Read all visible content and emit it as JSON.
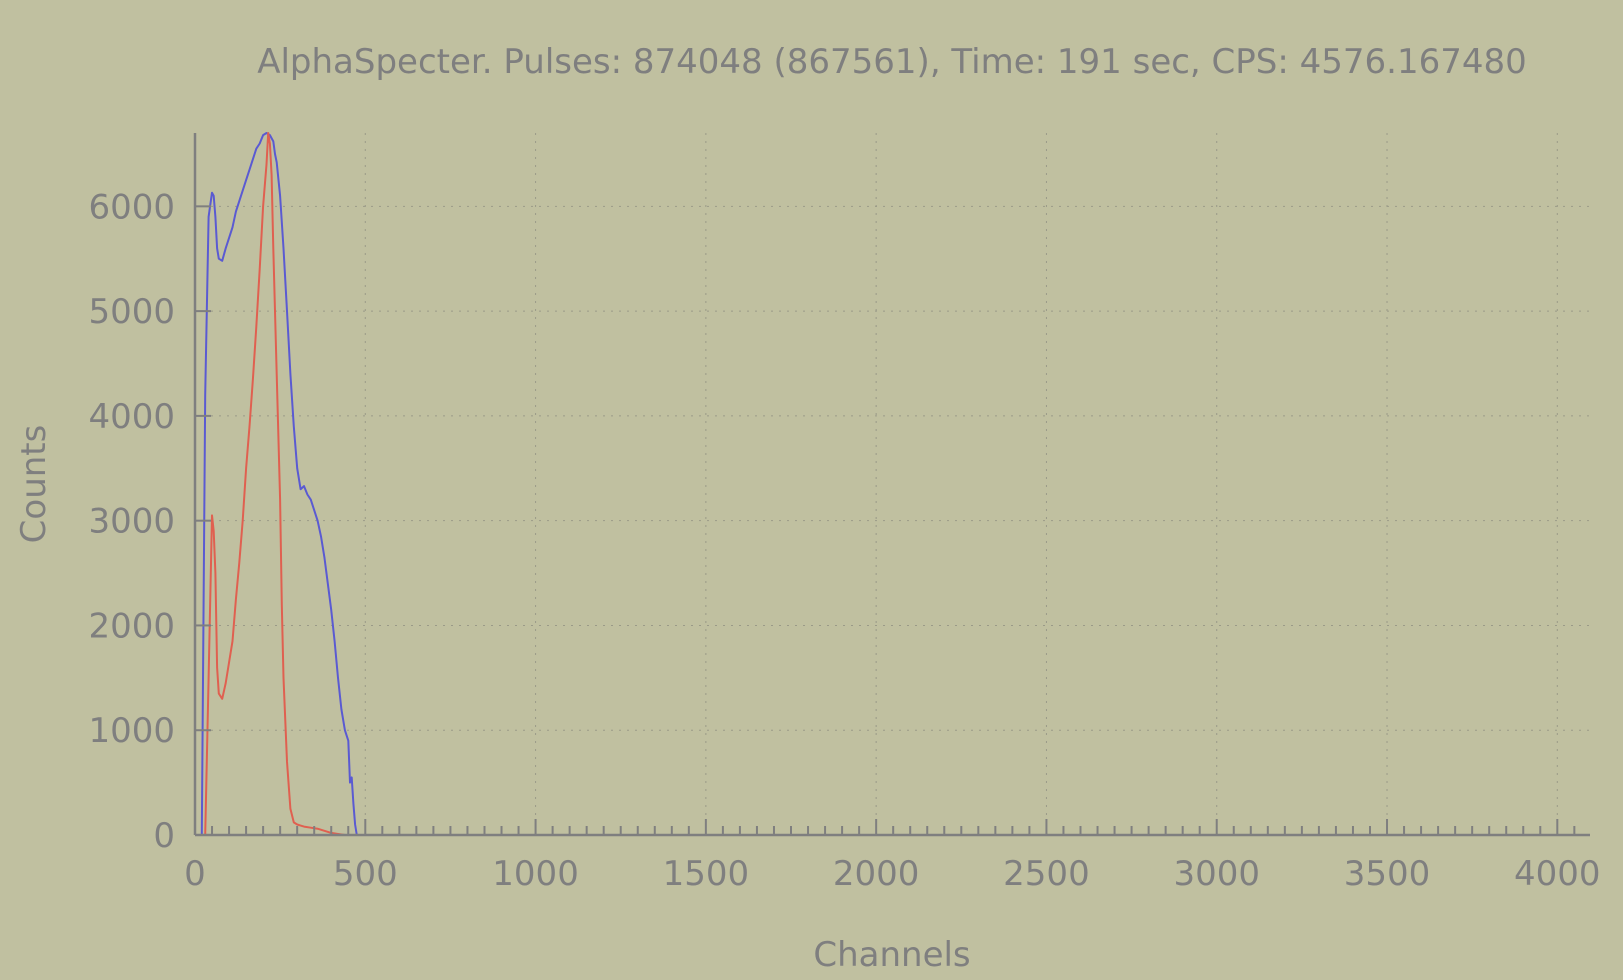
{
  "chart_data": {
    "type": "line",
    "title": "AlphaSpecter. Pulses: 874048 (867561), Time: 191 sec, CPS: 4576.167480",
    "xlabel": "Channels",
    "ylabel": "Counts",
    "xlim": [
      0,
      4096
    ],
    "ylim": [
      0,
      6700
    ],
    "x_ticks": [
      0,
      500,
      1000,
      1500,
      2000,
      2500,
      3000,
      3500,
      4000
    ],
    "y_ticks": [
      0,
      1000,
      2000,
      3000,
      4000,
      5000,
      6000
    ],
    "grid": true,
    "legend": "none",
    "background_color": "#c0c0a0",
    "axis_color": "#7f7f7f",
    "series": [
      {
        "color": "#5a5ad2",
        "x": [
          0,
          20,
          30,
          40,
          50,
          55,
          60,
          65,
          70,
          80,
          90,
          100,
          110,
          120,
          130,
          140,
          150,
          160,
          170,
          180,
          190,
          200,
          210,
          220,
          230,
          235,
          240,
          250,
          260,
          270,
          280,
          290,
          300,
          310,
          320,
          330,
          340,
          350,
          360,
          370,
          380,
          390,
          400,
          410,
          420,
          430,
          440,
          450,
          455,
          460,
          465,
          470,
          475,
          480,
          490,
          500,
          4096
        ],
        "y": [
          0,
          0,
          4200,
          5900,
          6130,
          6100,
          5900,
          5600,
          5500,
          5480,
          5600,
          5700,
          5800,
          5950,
          6050,
          6150,
          6250,
          6350,
          6450,
          6550,
          6600,
          6680,
          6700,
          6680,
          6620,
          6500,
          6420,
          6100,
          5600,
          5000,
          4400,
          3900,
          3500,
          3300,
          3330,
          3250,
          3200,
          3100,
          3000,
          2850,
          2650,
          2400,
          2150,
          1850,
          1500,
          1200,
          1000,
          900,
          500,
          550,
          300,
          100,
          0,
          0,
          0,
          0,
          0
        ]
      },
      {
        "color": "#e06050",
        "x": [
          0,
          30,
          40,
          50,
          55,
          60,
          65,
          70,
          80,
          90,
          100,
          110,
          120,
          130,
          140,
          150,
          160,
          170,
          180,
          190,
          200,
          210,
          215,
          220,
          225,
          230,
          240,
          250,
          255,
          260,
          270,
          280,
          290,
          300,
          310,
          320,
          340,
          360,
          380,
          400,
          420,
          440,
          460,
          480,
          500,
          4096
        ],
        "y": [
          0,
          0,
          1500,
          3050,
          2900,
          2500,
          1600,
          1350,
          1300,
          1450,
          1650,
          1850,
          2250,
          2600,
          3000,
          3500,
          3900,
          4350,
          4850,
          5400,
          6000,
          6400,
          6700,
          6600,
          6300,
          5600,
          4400,
          3200,
          2200,
          1500,
          700,
          250,
          120,
          100,
          90,
          80,
          70,
          60,
          40,
          20,
          10,
          0,
          0,
          0,
          0,
          0
        ]
      }
    ]
  }
}
